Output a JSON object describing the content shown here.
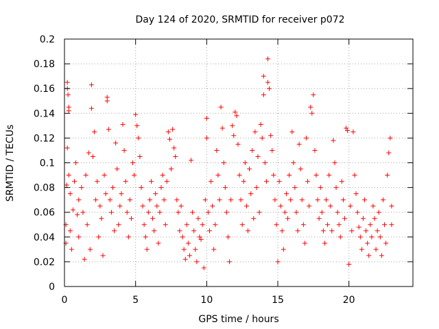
{
  "chart_data": {
    "type": "scatter",
    "title": "Day 124 of 2020, SRMTID for receiver p072",
    "xlabel": "GPS time / hours",
    "ylabel": "SRMTID / TECUs",
    "xlim": [
      0,
      24.5
    ],
    "ylim": [
      0,
      0.2
    ],
    "xticks": [
      0,
      5,
      10,
      15,
      20
    ],
    "xtick_labels": [
      "0",
      "5",
      "10",
      "15",
      "20"
    ],
    "yticks": [
      0,
      0.02,
      0.04,
      0.06,
      0.08,
      0.1,
      0.12,
      0.14,
      0.16,
      0.18,
      0.2
    ],
    "ytick_labels": [
      "0",
      "0.02",
      "0.04",
      "0.06",
      "0.08",
      "0.1",
      "0.12",
      "0.14",
      "0.16",
      "0.18",
      "0.2"
    ],
    "grid": true,
    "marker": "+",
    "color": "#ff0000",
    "series": [
      {
        "name": "SRMTID",
        "points": [
          [
            0.1,
            0.035
          ],
          [
            0.1,
            0.05
          ],
          [
            0.15,
            0.082
          ],
          [
            0.2,
            0.165
          ],
          [
            0.2,
            0.16
          ],
          [
            0.25,
            0.155
          ],
          [
            0.3,
            0.145
          ],
          [
            0.3,
            0.142
          ],
          [
            0.2,
            0.112
          ],
          [
            0.3,
            0.09
          ],
          [
            0.4,
            0.075
          ],
          [
            0.4,
            0.045
          ],
          [
            0.5,
            0.03
          ],
          [
            0.6,
            0.062
          ],
          [
            0.7,
            0.085
          ],
          [
            0.8,
            0.1
          ],
          [
            0.9,
            0.058
          ],
          [
            1.0,
            0.07
          ],
          [
            1.0,
            0.04
          ],
          [
            1.2,
            0.08
          ],
          [
            1.3,
            0.06
          ],
          [
            1.4,
            0.022
          ],
          [
            1.5,
            0.09
          ],
          [
            1.6,
            0.05
          ],
          [
            1.7,
            0.108
          ],
          [
            1.8,
            0.03
          ],
          [
            1.9,
            0.144
          ],
          [
            1.9,
            0.163
          ],
          [
            2.0,
            0.105
          ],
          [
            2.1,
            0.125
          ],
          [
            2.2,
            0.07
          ],
          [
            2.3,
            0.085
          ],
          [
            2.4,
            0.04
          ],
          [
            2.5,
            0.065
          ],
          [
            2.6,
            0.055
          ],
          [
            2.7,
            0.025
          ],
          [
            2.8,
            0.09
          ],
          [
            2.9,
            0.075
          ],
          [
            3.0,
            0.153
          ],
          [
            3.0,
            0.15
          ],
          [
            3.1,
            0.127
          ],
          [
            3.2,
            0.07
          ],
          [
            3.3,
            0.06
          ],
          [
            3.4,
            0.08
          ],
          [
            3.5,
            0.045
          ],
          [
            3.6,
            0.116
          ],
          [
            3.7,
            0.095
          ],
          [
            3.8,
            0.05
          ],
          [
            3.9,
            0.065
          ],
          [
            4.0,
            0.075
          ],
          [
            4.1,
            0.131
          ],
          [
            4.2,
            0.11
          ],
          [
            4.3,
            0.085
          ],
          [
            4.4,
            0.06
          ],
          [
            4.5,
            0.04
          ],
          [
            4.6,
            0.07
          ],
          [
            4.7,
            0.055
          ],
          [
            4.8,
            0.1
          ],
          [
            4.9,
            0.09
          ],
          [
            5.0,
            0.139
          ],
          [
            5.1,
            0.13
          ],
          [
            5.2,
            0.12
          ],
          [
            5.3,
            0.105
          ],
          [
            5.4,
            0.08
          ],
          [
            5.5,
            0.065
          ],
          [
            5.6,
            0.05
          ],
          [
            5.7,
            0.04
          ],
          [
            5.8,
            0.03
          ],
          [
            5.9,
            0.06
          ],
          [
            6.0,
            0.07
          ],
          [
            6.1,
            0.085
          ],
          [
            6.2,
            0.055
          ],
          [
            6.3,
            0.045
          ],
          [
            6.4,
            0.075
          ],
          [
            6.5,
            0.065
          ],
          [
            6.6,
            0.035
          ],
          [
            6.7,
            0.06
          ],
          [
            6.8,
            0.08
          ],
          [
            6.9,
            0.09
          ],
          [
            7.0,
            0.07
          ],
          [
            7.1,
            0.05
          ],
          [
            7.2,
            0.085
          ],
          [
            7.3,
            0.125
          ],
          [
            7.4,
            0.119
          ],
          [
            7.5,
            0.095
          ],
          [
            7.6,
            0.127
          ],
          [
            7.7,
            0.112
          ],
          [
            7.8,
            0.105
          ],
          [
            7.9,
            0.07
          ],
          [
            8.0,
            0.06
          ],
          [
            8.1,
            0.045
          ],
          [
            8.2,
            0.065
          ],
          [
            8.3,
            0.04
          ],
          [
            8.4,
            0.03
          ],
          [
            8.5,
            0.022
          ],
          [
            8.6,
            0.05
          ],
          [
            8.7,
            0.035
          ],
          [
            8.8,
            0.025
          ],
          [
            8.9,
            0.102
          ],
          [
            9.0,
            0.06
          ],
          [
            9.1,
            0.045
          ],
          [
            9.2,
            0.03
          ],
          [
            9.3,
            0.02
          ],
          [
            9.4,
            0.055
          ],
          [
            9.5,
            0.04
          ],
          [
            9.6,
            0.038
          ],
          [
            9.7,
            0.05
          ],
          [
            9.8,
            0.015
          ],
          [
            9.9,
            0.07
          ],
          [
            10.0,
            0.136
          ],
          [
            10.0,
            0.12
          ],
          [
            10.1,
            0.06
          ],
          [
            10.2,
            0.045
          ],
          [
            10.3,
            0.085
          ],
          [
            10.4,
            0.065
          ],
          [
            10.5,
            0.03
          ],
          [
            10.6,
            0.05
          ],
          [
            10.7,
            0.11
          ],
          [
            10.8,
            0.09
          ],
          [
            10.9,
            0.07
          ],
          [
            11.0,
            0.145
          ],
          [
            11.1,
            0.128
          ],
          [
            11.2,
            0.1
          ],
          [
            11.3,
            0.08
          ],
          [
            11.4,
            0.06
          ],
          [
            11.5,
            0.04
          ],
          [
            11.6,
            0.02
          ],
          [
            11.7,
            0.07
          ],
          [
            11.8,
            0.13
          ],
          [
            11.9,
            0.122
          ],
          [
            12.0,
            0.141
          ],
          [
            12.1,
            0.138
          ],
          [
            12.2,
            0.115
          ],
          [
            12.3,
            0.09
          ],
          [
            12.4,
            0.07
          ],
          [
            12.5,
            0.05
          ],
          [
            12.6,
            0.085
          ],
          [
            12.7,
            0.1
          ],
          [
            12.8,
            0.065
          ],
          [
            12.9,
            0.045
          ],
          [
            13.0,
            0.095
          ],
          [
            13.1,
            0.075
          ],
          [
            13.2,
            0.11
          ],
          [
            13.3,
            0.055
          ],
          [
            13.4,
            0.125
          ],
          [
            13.5,
            0.08
          ],
          [
            13.6,
            0.105
          ],
          [
            13.7,
            0.06
          ],
          [
            13.8,
            0.131
          ],
          [
            13.9,
            0.12
          ],
          [
            14.0,
            0.17
          ],
          [
            14.0,
            0.155
          ],
          [
            14.1,
            0.1
          ],
          [
            14.2,
            0.085
          ],
          [
            14.3,
            0.165
          ],
          [
            14.3,
            0.184
          ],
          [
            14.4,
            0.16
          ],
          [
            14.5,
            0.122
          ],
          [
            14.6,
            0.11
          ],
          [
            14.7,
            0.09
          ],
          [
            14.8,
            0.07
          ],
          [
            14.9,
            0.05
          ],
          [
            15.0,
            0.02
          ],
          [
            15.1,
            0.085
          ],
          [
            15.2,
            0.065
          ],
          [
            15.3,
            0.045
          ],
          [
            15.4,
            0.03
          ],
          [
            15.5,
            0.06
          ],
          [
            15.6,
            0.075
          ],
          [
            15.7,
            0.055
          ],
          [
            15.8,
            0.09
          ],
          [
            15.9,
            0.07
          ],
          [
            16.0,
            0.125
          ],
          [
            16.1,
            0.1
          ],
          [
            16.2,
            0.08
          ],
          [
            16.3,
            0.06
          ],
          [
            16.4,
            0.045
          ],
          [
            16.5,
            0.115
          ],
          [
            16.6,
            0.095
          ],
          [
            16.7,
            0.07
          ],
          [
            16.8,
            0.05
          ],
          [
            16.9,
            0.035
          ],
          [
            17.0,
            0.12
          ],
          [
            17.1,
            0.085
          ],
          [
            17.2,
            0.065
          ],
          [
            17.3,
            0.145
          ],
          [
            17.4,
            0.14
          ],
          [
            17.5,
            0.155
          ],
          [
            17.6,
            0.11
          ],
          [
            17.7,
            0.09
          ],
          [
            17.8,
            0.07
          ],
          [
            17.9,
            0.055
          ],
          [
            18.0,
            0.08
          ],
          [
            18.1,
            0.06
          ],
          [
            18.2,
            0.045
          ],
          [
            18.3,
            0.035
          ],
          [
            18.4,
            0.07
          ],
          [
            18.5,
            0.05
          ],
          [
            18.6,
            0.09
          ],
          [
            18.7,
            0.065
          ],
          [
            18.8,
            0.045
          ],
          [
            18.9,
            0.118
          ],
          [
            19.0,
            0.1
          ],
          [
            19.1,
            0.08
          ],
          [
            19.2,
            0.06
          ],
          [
            19.3,
            0.05
          ],
          [
            19.4,
            0.04
          ],
          [
            19.5,
            0.085
          ],
          [
            19.6,
            0.07
          ],
          [
            19.7,
            0.055
          ],
          [
            19.8,
            0.128
          ],
          [
            19.9,
            0.126
          ],
          [
            20.0,
            0.018
          ],
          [
            20.1,
            0.065
          ],
          [
            20.2,
            0.045
          ],
          [
            20.3,
            0.125
          ],
          [
            20.4,
            0.09
          ],
          [
            20.5,
            0.075
          ],
          [
            20.6,
            0.06
          ],
          [
            20.7,
            0.048
          ],
          [
            20.8,
            0.04
          ],
          [
            20.9,
            0.03
          ],
          [
            21.0,
            0.055
          ],
          [
            21.1,
            0.07
          ],
          [
            21.2,
            0.045
          ],
          [
            21.3,
            0.035
          ],
          [
            21.4,
            0.025
          ],
          [
            21.5,
            0.05
          ],
          [
            21.6,
            0.04
          ],
          [
            21.7,
            0.065
          ],
          [
            21.8,
            0.055
          ],
          [
            21.9,
            0.03
          ],
          [
            22.0,
            0.045
          ],
          [
            22.1,
            0.06
          ],
          [
            22.2,
            0.04
          ],
          [
            22.3,
            0.025
          ],
          [
            22.4,
            0.07
          ],
          [
            22.5,
            0.05
          ],
          [
            22.6,
            0.035
          ],
          [
            22.7,
            0.09
          ],
          [
            22.8,
            0.108
          ],
          [
            22.9,
            0.12
          ],
          [
            23.0,
            0.065
          ],
          [
            23.0,
            0.05
          ]
        ]
      }
    ]
  }
}
